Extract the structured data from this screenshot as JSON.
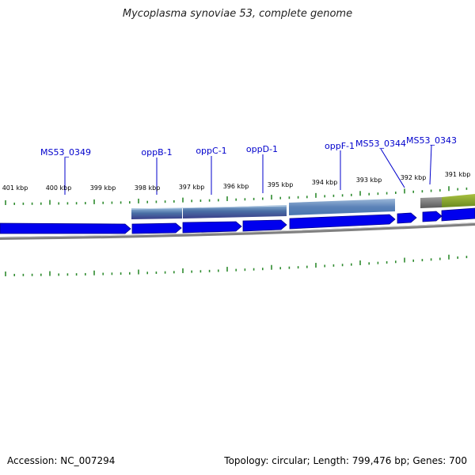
{
  "header": {
    "title": "Mycoplasma synoviae 53, complete genome"
  },
  "footer": {
    "accession": "Accession: NC_007294",
    "topology": "Topology: circular; Length: 799,476 bp; Genes: 700"
  },
  "scale": {
    "ticks": [
      {
        "label": "401 kbp"
      },
      {
        "label": "400 kbp"
      },
      {
        "label": "399 kbp"
      },
      {
        "label": "398 kbp"
      },
      {
        "label": "397 kbp"
      },
      {
        "label": "396 kbp"
      },
      {
        "label": "395 kbp"
      },
      {
        "label": "394 kbp"
      },
      {
        "label": "393 kbp"
      },
      {
        "label": "392 kbp"
      },
      {
        "label": "391 kbp"
      }
    ]
  },
  "genes": [
    {
      "label": ""
    },
    {
      "label": "MS53_0349"
    },
    {
      "label": "oppB-1"
    },
    {
      "label": "oppC-1"
    },
    {
      "label": "oppD-1"
    },
    {
      "label": "oppF-1"
    },
    {
      "label": "MS53_0344"
    },
    {
      "label": "MS53_0343"
    },
    {
      "label": ""
    }
  ],
  "colors": {
    "gene": "#0000ee",
    "gene_label": "#0000cc",
    "tick": "#2e8b2e",
    "protein": "#4a6fa5",
    "protein_alt": "#7a9a2a",
    "backbone": "#888888"
  }
}
